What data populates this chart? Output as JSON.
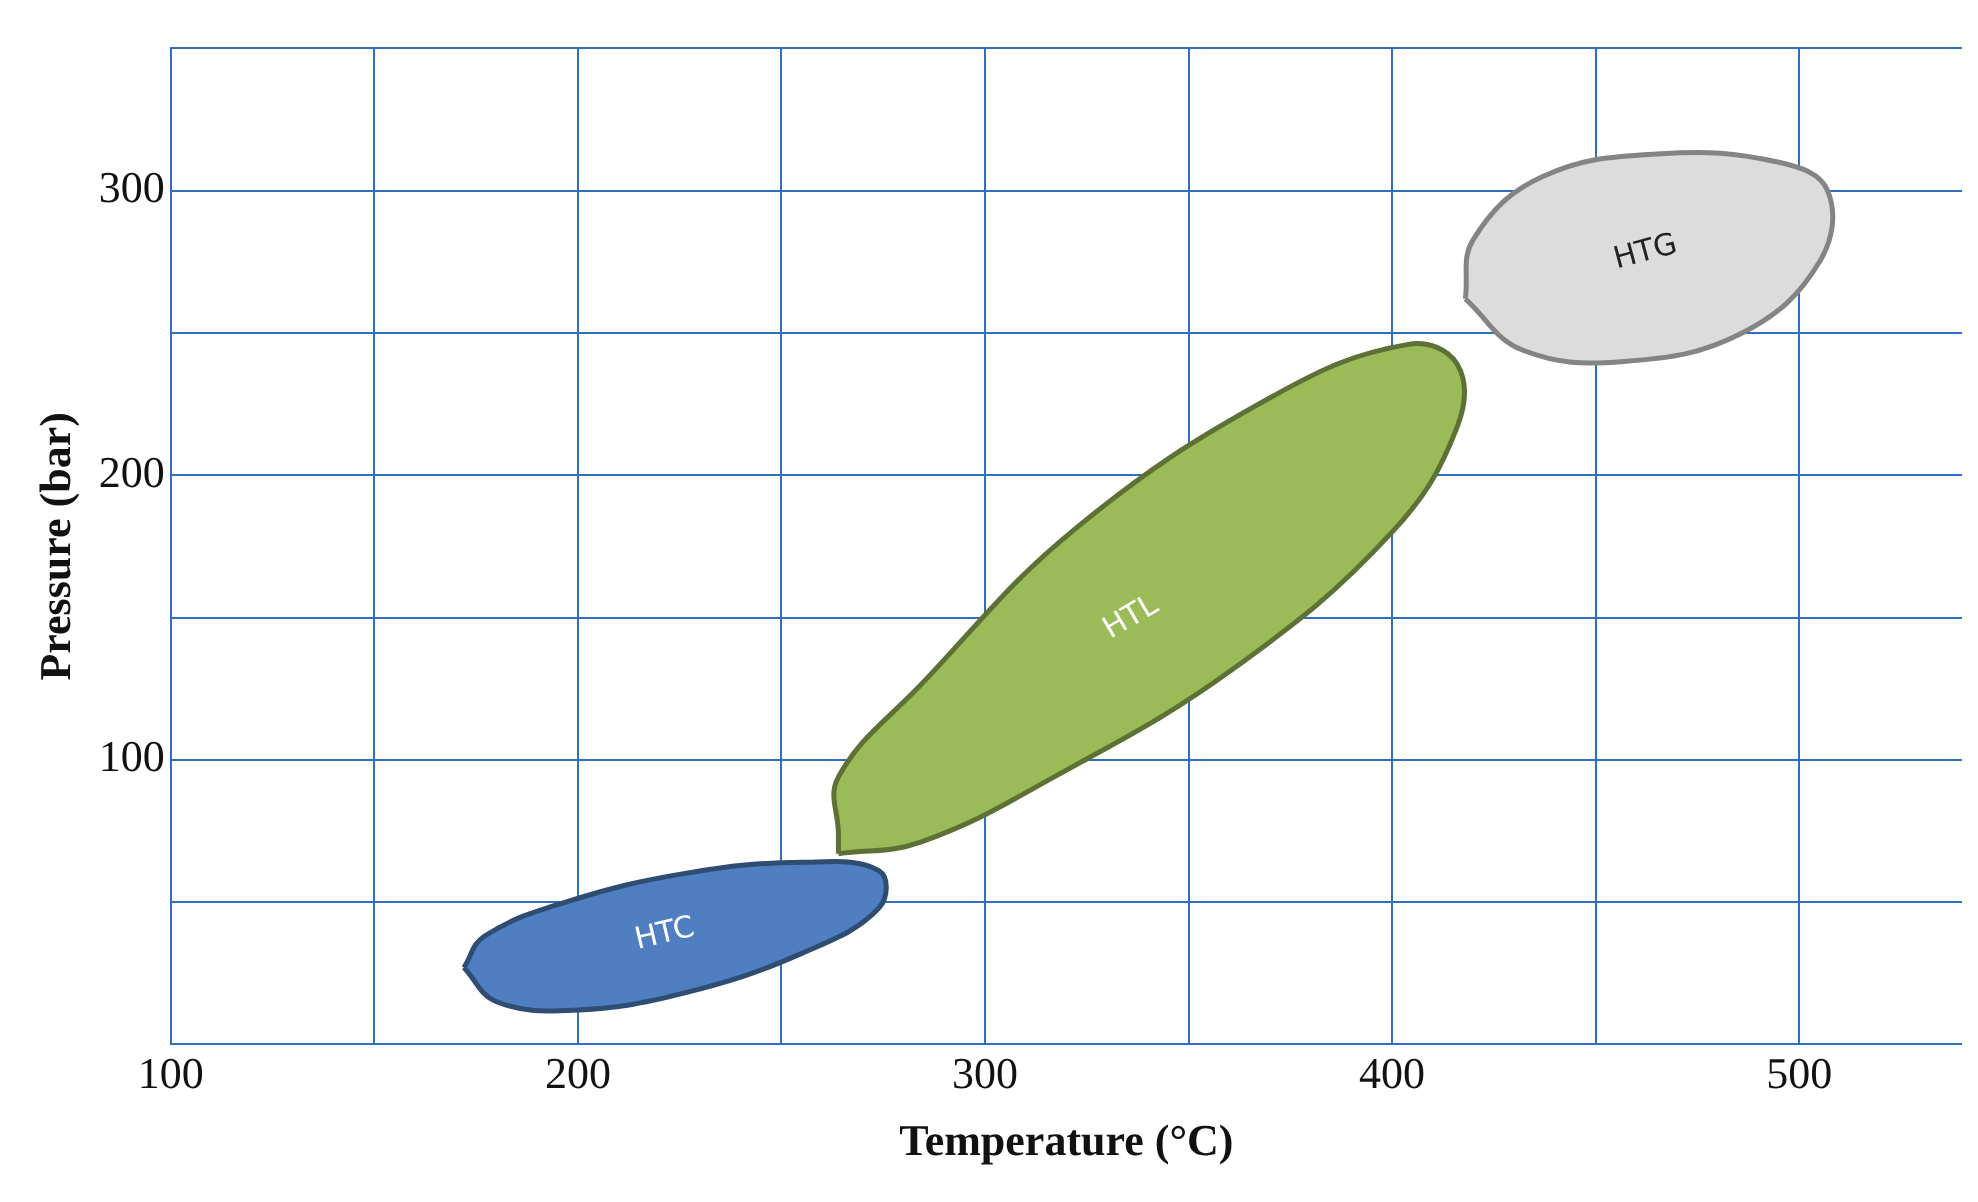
{
  "chart_data": {
    "type": "area",
    "xlabel": "Temperature (°C)",
    "ylabel": "Pressure (bar)",
    "xlim": [
      100,
      540
    ],
    "ylim": [
      0,
      350
    ],
    "xticks": [
      100,
      {
        "value": 150,
        "label": null
      },
      200,
      {
        "value": 250,
        "label": null
      },
      300,
      {
        "value": 350,
        "label": null
      },
      400,
      {
        "value": 450,
        "label": null
      },
      500
    ],
    "yticks": [
      {
        "value": 50,
        "label": null
      },
      100,
      {
        "value": 150,
        "label": null
      },
      200,
      {
        "value": 250,
        "label": null
      },
      300,
      {
        "value": 350,
        "label": null
      }
    ],
    "grid": true,
    "legend": false,
    "marker": "none",
    "series": [
      {
        "name": "HTC",
        "color": "#4f7fc0",
        "x": [
          172,
          180,
          199,
          226,
          255,
          274,
          274,
          255,
          226,
          197,
          177
        ],
        "values": [
          27,
          15,
          12,
          18,
          32,
          48,
          61,
          64,
          60,
          50,
          38
        ]
      },
      {
        "name": "HTL",
        "color": "#9bbb59",
        "x": [
          264,
          284,
          317,
          361,
          400,
          416,
          416,
          404,
          371,
          322,
          284,
          264,
          264
        ],
        "values": [
          67,
          71,
          94,
          132,
          180,
          217,
          239,
          246,
          228,
          181,
          126,
          94,
          74
        ]
      },
      {
        "name": "HTG",
        "color": "#dcdcdc",
        "x": [
          418,
          432,
          457,
          486,
          505,
          507,
          495,
          466,
          437,
          420
        ],
        "values": [
          262,
          244,
          240,
          250,
          275,
          300,
          310,
          313,
          305,
          283
        ]
      }
    ]
  }
}
